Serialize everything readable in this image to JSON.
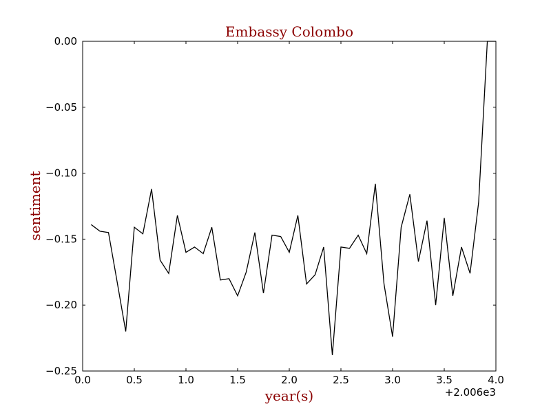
{
  "chart_data": {
    "type": "line",
    "title": "Embassy Colombo",
    "xlabel": "year(s)",
    "ylabel": "sentiment",
    "x_offset_label": "+2.006e3",
    "xlim": [
      0.0,
      4.0
    ],
    "ylim": [
      -0.25,
      0.0
    ],
    "x_ticks": [
      0.0,
      0.5,
      1.0,
      1.5,
      2.0,
      2.5,
      3.0,
      3.5,
      4.0
    ],
    "x_tick_labels": [
      "0.0",
      "0.5",
      "1.0",
      "1.5",
      "2.0",
      "2.5",
      "3.0",
      "3.5",
      "4.0"
    ],
    "y_ticks": [
      0.0,
      -0.05,
      -0.1,
      -0.15,
      -0.2,
      -0.25
    ],
    "y_tick_labels": [
      "0.00",
      "−0.05",
      "−0.10",
      "−0.15",
      "−0.20",
      "−0.25"
    ],
    "grid": false,
    "series": [
      {
        "color": "#000000",
        "x": [
          0.083,
          0.167,
          0.25,
          0.333,
          0.417,
          0.5,
          0.583,
          0.667,
          0.75,
          0.833,
          0.917,
          1.0,
          1.083,
          1.167,
          1.25,
          1.333,
          1.417,
          1.5,
          1.583,
          1.667,
          1.75,
          1.833,
          1.917,
          2.0,
          2.083,
          2.167,
          2.25,
          2.333,
          2.417,
          2.5,
          2.583,
          2.667,
          2.75,
          2.833,
          2.917,
          3.0,
          3.083,
          3.167,
          3.25,
          3.333,
          3.417,
          3.5,
          3.583,
          3.667,
          3.75,
          3.833,
          3.917,
          4.0
        ],
        "y": [
          -0.139,
          -0.144,
          -0.145,
          -0.182,
          -0.22,
          -0.141,
          -0.146,
          -0.112,
          -0.166,
          -0.176,
          -0.132,
          -0.16,
          -0.156,
          -0.161,
          -0.141,
          -0.181,
          -0.18,
          -0.193,
          -0.175,
          -0.145,
          -0.191,
          -0.147,
          -0.148,
          -0.16,
          -0.132,
          -0.184,
          -0.177,
          -0.156,
          -0.238,
          -0.156,
          -0.157,
          -0.147,
          -0.161,
          -0.108,
          -0.184,
          -0.224,
          -0.141,
          -0.116,
          -0.167,
          -0.136,
          -0.2,
          -0.134,
          -0.193,
          -0.156,
          -0.176,
          -0.122,
          0.0,
          0.0
        ]
      }
    ]
  }
}
